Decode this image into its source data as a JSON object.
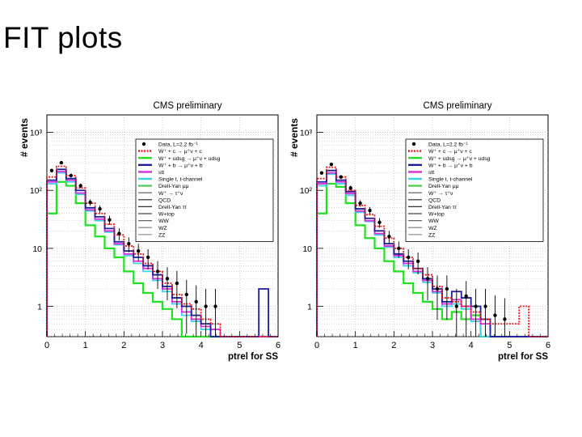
{
  "slide": {
    "title": "FIT plots"
  },
  "colors": {
    "data": "#000000",
    "w_c": "#e8181c",
    "w_udsg": "#22e022",
    "w_b": "#1c1c9c",
    "stt": "#d92bd9",
    "single_t_l": "#3bd3e6",
    "drell_yan": "#55cc55",
    "background": "#ffffff"
  },
  "chart_data": [
    {
      "type": "line",
      "title": "CMS preliminary",
      "xlabel": "ptrel for SS",
      "ylabel": "# events",
      "log_y": true,
      "xlim": [
        0,
        6
      ],
      "ylim": [
        0.3,
        2000
      ],
      "x_ticks": [
        "0",
        "1",
        "2",
        "3",
        "4",
        "5",
        "6"
      ],
      "y_ticks": [
        "1",
        "10",
        "10²",
        "10³"
      ],
      "grid": true,
      "legend_position": "top-right",
      "legend": [
        "Data, L=2.2 fb⁻¹",
        "W⁺ + c → μ⁺ν + c",
        "W⁺ + udsg → μ⁺ν + udsg",
        "W⁺ + b → μ⁺ν + b",
        "stt",
        "Single t, t-channel",
        "Drell-Yan μμ",
        "W⁺ → τ⁺ν",
        "QCD",
        "Drell-Yan ττ",
        "W+top",
        "WW",
        "WZ",
        "ZZ"
      ],
      "bin_width": 0.25,
      "series": [
        {
          "key": "data",
          "values": [
            220,
            300,
            180,
            120,
            62,
            48,
            31,
            18,
            12,
            9,
            7,
            4,
            3,
            2.5,
            1.6,
            1.2,
            1,
            1,
            0,
            0,
            0,
            0,
            0,
            0
          ]
        },
        {
          "key": "w_c",
          "values": [
            170,
            260,
            180,
            110,
            60,
            40,
            26,
            17,
            11,
            8,
            5.5,
            4,
            2.5,
            1.6,
            1.1,
            0.9,
            0.6,
            0.5,
            0,
            0,
            0,
            0,
            0,
            0
          ]
        },
        {
          "key": "w_udsg",
          "values": [
            40,
            140,
            120,
            60,
            25,
            16,
            10,
            7,
            4,
            2.5,
            1.7,
            1.2,
            0.9,
            0.6,
            0,
            0,
            0,
            0,
            0,
            0,
            0,
            0,
            0,
            0
          ]
        },
        {
          "key": "w_b",
          "values": [
            150,
            230,
            160,
            100,
            50,
            35,
            22,
            13,
            9,
            7,
            5,
            3.5,
            2.2,
            1.4,
            1,
            0.7,
            0.5,
            0,
            0,
            0,
            0,
            0,
            2,
            0
          ]
        },
        {
          "key": "stt",
          "values": [
            140,
            210,
            150,
            90,
            46,
            32,
            20,
            12,
            8,
            6,
            4.5,
            3,
            2,
            1.2,
            0.8,
            0.6,
            0.45,
            0.4,
            0,
            0,
            0,
            0,
            0,
            0
          ]
        },
        {
          "key": "single_t_l",
          "values": [
            130,
            200,
            140,
            85,
            44,
            30,
            19,
            11.5,
            7.5,
            5.5,
            4,
            2.8,
            1.8,
            1.1,
            0.7,
            0.55,
            0.4,
            0,
            0,
            0,
            0,
            0,
            0,
            0
          ]
        }
      ]
    },
    {
      "type": "line",
      "title": "CMS preliminary",
      "xlabel": "ptrel for SS",
      "ylabel": "# events",
      "log_y": true,
      "xlim": [
        0,
        6
      ],
      "ylim": [
        0.3,
        2000
      ],
      "x_ticks": [
        "0",
        "1",
        "2",
        "3",
        "4",
        "5",
        "6"
      ],
      "y_ticks": [
        "1",
        "10",
        "10²",
        "10³"
      ],
      "grid": true,
      "legend_position": "top-right",
      "legend": [
        "Data, L=2.2 fb⁻¹",
        "W⁺ + c → μ⁺ν + c",
        "W⁺ + udsg → μ⁺ν + udsg",
        "W⁺ + b → μ⁺ν + b",
        "stt",
        "Single t, t-channel",
        "Drell-Yan μμ",
        "W⁺ → τ⁺ν",
        "QCD",
        "Drell-Yan ττ",
        "W+top",
        "WW",
        "WZ",
        "ZZ"
      ],
      "bin_width": 0.25,
      "series": [
        {
          "key": "data",
          "values": [
            200,
            280,
            170,
            110,
            60,
            45,
            28,
            16,
            10,
            7,
            6,
            3,
            2,
            2,
            1,
            1.5,
            1,
            1,
            0.7,
            0.6,
            0,
            0,
            0,
            0
          ]
        },
        {
          "key": "w_c",
          "values": [
            160,
            250,
            170,
            100,
            55,
            38,
            24,
            15,
            10,
            7,
            4.5,
            3.5,
            2.2,
            1.4,
            1.2,
            1.0,
            0.8,
            0.6,
            0.5,
            0.5,
            0.5,
            1,
            0,
            0
          ]
        },
        {
          "key": "w_udsg",
          "values": [
            40,
            130,
            115,
            60,
            25,
            15,
            10,
            6,
            4,
            2.5,
            1.7,
            1.2,
            0.9,
            0.6,
            0.8,
            0.6,
            0.7,
            0,
            0,
            0,
            0,
            0,
            0,
            0
          ]
        },
        {
          "key": "w_b",
          "values": [
            140,
            220,
            150,
            95,
            48,
            33,
            20,
            12,
            8,
            6,
            4.5,
            3,
            2,
            1.2,
            1.8,
            1.4,
            1,
            0.6,
            0,
            0,
            0,
            0,
            0,
            0
          ]
        },
        {
          "key": "stt",
          "values": [
            130,
            200,
            140,
            88,
            44,
            30,
            18,
            11,
            7.5,
            5.5,
            4,
            2.8,
            1.8,
            1.1,
            1.3,
            1,
            0.6,
            0.5,
            0,
            0,
            0,
            0,
            0,
            0
          ]
        },
        {
          "key": "single_t_l",
          "values": [
            120,
            190,
            130,
            82,
            42,
            29,
            17,
            10.5,
            7,
            5,
            3.8,
            2.6,
            1.7,
            1,
            1.1,
            0.9,
            0.55,
            0,
            0,
            0,
            0,
            0,
            0,
            0
          ]
        }
      ]
    }
  ]
}
